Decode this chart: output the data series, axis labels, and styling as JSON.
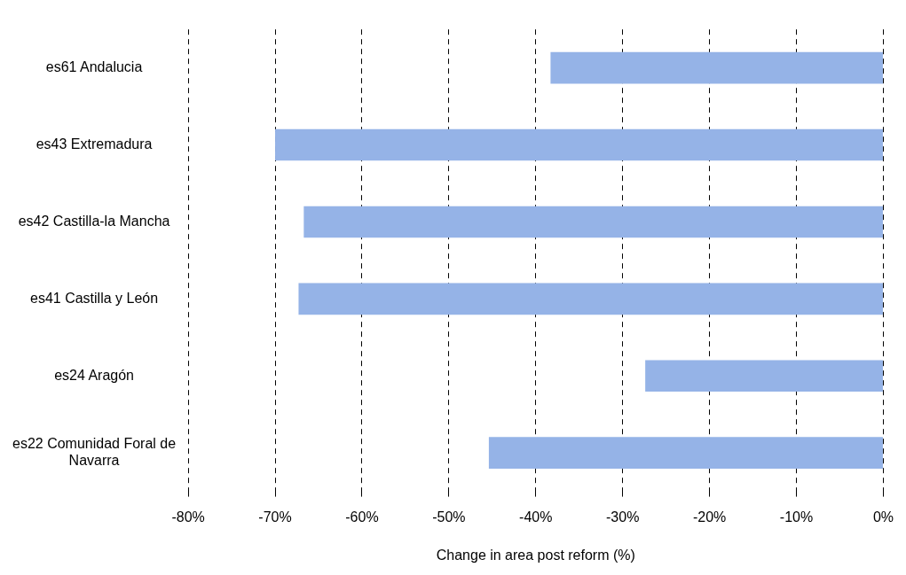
{
  "chart_data": {
    "type": "bar",
    "orientation": "horizontal",
    "xlabel": "Change in area post reform (%)",
    "categories": [
      "es61 Andalucia",
      "es43 Extremadura",
      "es42 Castilla-la Mancha",
      "es41 Castilla y León",
      "es24 Aragón",
      "es22 Comunidad Foral de Navarra"
    ],
    "values": [
      -38.3,
      -70.0,
      -66.7,
      -67.3,
      -27.4,
      -45.4
    ],
    "color": "#95b3e7",
    "xlim": [
      -80,
      0
    ],
    "xticks": [
      {
        "value": -80,
        "label": "-80%"
      },
      {
        "value": -70,
        "label": "-70%"
      },
      {
        "value": -60,
        "label": "-60%"
      },
      {
        "value": -50,
        "label": "-50%"
      },
      {
        "value": -40,
        "label": "-40%"
      },
      {
        "value": -30,
        "label": "-30%"
      },
      {
        "value": -20,
        "label": "-20%"
      },
      {
        "value": -10,
        "label": "-10%"
      },
      {
        "value": 0,
        "label": "0%"
      }
    ],
    "grid": "x",
    "line_style": "dashed",
    "legend": false
  }
}
